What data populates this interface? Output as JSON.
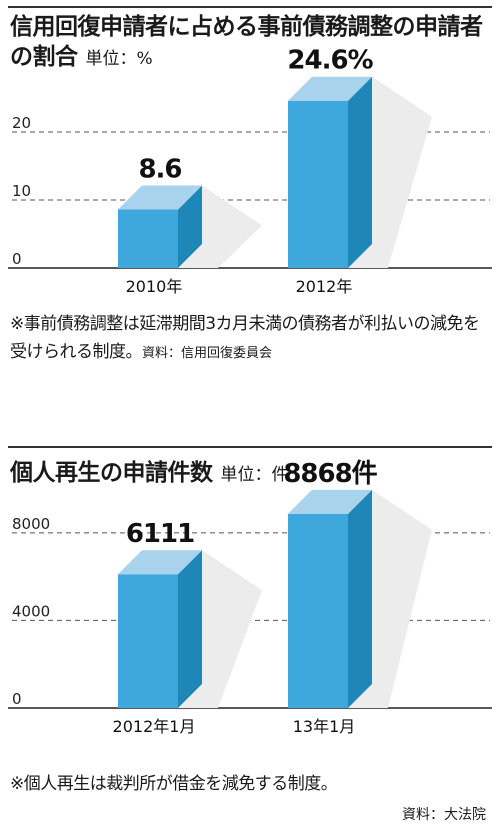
{
  "chart_data": [
    {
      "type": "bar",
      "title": "信用回復申請者に占める事前債務調整の申請者の割合",
      "unit": "単位：%",
      "categories": [
        "2010年",
        "2012年"
      ],
      "values": [
        8.6,
        24.6
      ],
      "value_labels": [
        "8.6",
        "24.6%"
      ],
      "yticks": [
        0,
        10,
        20
      ],
      "ylim": [
        0,
        25
      ],
      "bar_color": "#3ea7db",
      "bar_side_color": "#1e87b8",
      "bar_top_color": "#a9d3ec",
      "note": "※事前債務調整は延滞期間3カ月未満の債務者が利払いの減免を受けられる制度。",
      "source": "資料：信用回復委員会"
    },
    {
      "type": "bar",
      "title": "個人再生の申請件数",
      "unit": "単位：件",
      "categories": [
        "2012年1月",
        "13年1月"
      ],
      "values": [
        6111,
        8868
      ],
      "value_labels": [
        "6111",
        "8868件"
      ],
      "yticks": [
        0,
        4000,
        8000
      ],
      "ylim": [
        0,
        9500
      ],
      "bar_color": "#3ea7db",
      "bar_side_color": "#1e87b8",
      "bar_top_color": "#a9d3ec",
      "note": "※個人再生は裁判所が借金を減免する制度。",
      "source": "資料：大法院"
    }
  ]
}
